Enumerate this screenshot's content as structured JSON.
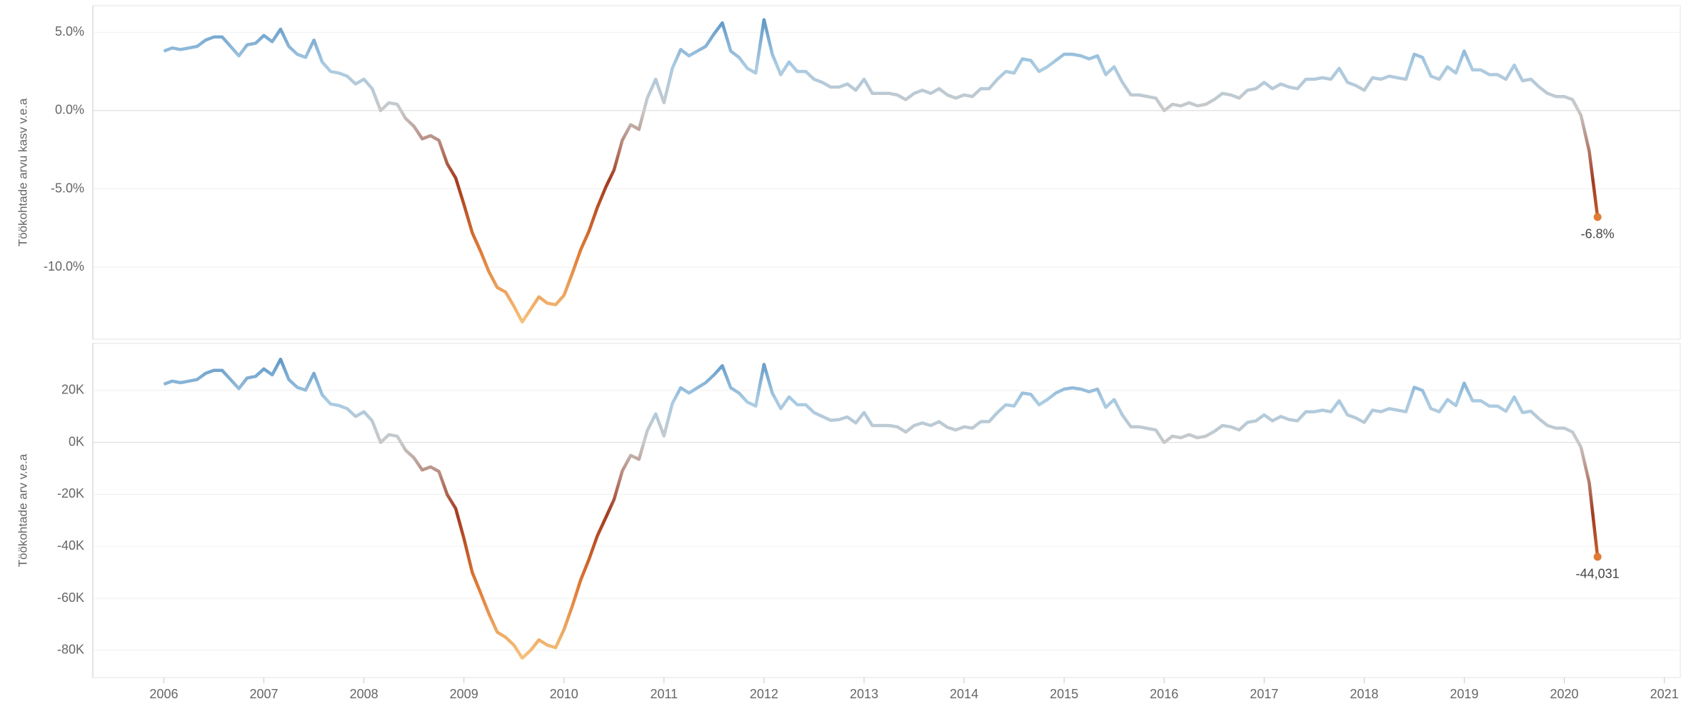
{
  "chart_data": [
    {
      "type": "line",
      "ylabel": "Töökohtade arvu kasv v.e.a",
      "x": [
        2006,
        2006.083,
        2006.167,
        2006.25,
        2006.333,
        2006.417,
        2006.5,
        2006.583,
        2006.667,
        2006.75,
        2006.833,
        2006.917,
        2007,
        2007.083,
        2007.167,
        2007.25,
        2007.333,
        2007.417,
        2007.5,
        2007.583,
        2007.667,
        2007.75,
        2007.833,
        2007.917,
        2008,
        2008.083,
        2008.167,
        2008.25,
        2008.333,
        2008.417,
        2008.5,
        2008.583,
        2008.667,
        2008.75,
        2008.833,
        2008.917,
        2009,
        2009.083,
        2009.167,
        2009.25,
        2009.333,
        2009.417,
        2009.5,
        2009.583,
        2009.667,
        2009.75,
        2009.833,
        2009.917,
        2010,
        2010.083,
        2010.167,
        2010.25,
        2010.333,
        2010.417,
        2010.5,
        2010.583,
        2010.667,
        2010.75,
        2010.833,
        2010.917,
        2011,
        2011.083,
        2011.167,
        2011.25,
        2011.333,
        2011.417,
        2011.5,
        2011.583,
        2011.667,
        2011.75,
        2011.833,
        2011.917,
        2012,
        2012.083,
        2012.167,
        2012.25,
        2012.333,
        2012.417,
        2012.5,
        2012.583,
        2012.667,
        2012.75,
        2012.833,
        2012.917,
        2013,
        2013.083,
        2013.167,
        2013.25,
        2013.333,
        2013.417,
        2013.5,
        2013.583,
        2013.667,
        2013.75,
        2013.833,
        2013.917,
        2014,
        2014.083,
        2014.167,
        2014.25,
        2014.333,
        2014.417,
        2014.5,
        2014.583,
        2014.667,
        2014.75,
        2014.833,
        2014.917,
        2015,
        2015.083,
        2015.167,
        2015.25,
        2015.333,
        2015.417,
        2015.5,
        2015.583,
        2015.667,
        2015.75,
        2015.833,
        2015.917,
        2016,
        2016.083,
        2016.167,
        2016.25,
        2016.333,
        2016.417,
        2016.5,
        2016.583,
        2016.667,
        2016.75,
        2016.833,
        2016.917,
        2017,
        2017.083,
        2017.167,
        2017.25,
        2017.333,
        2017.417,
        2017.5,
        2017.583,
        2017.667,
        2017.75,
        2017.833,
        2017.917,
        2018,
        2018.083,
        2018.167,
        2018.25,
        2018.333,
        2018.417,
        2018.5,
        2018.583,
        2018.667,
        2018.75,
        2018.833,
        2018.917,
        2019,
        2019.083,
        2019.167,
        2019.25,
        2019.333,
        2019.417,
        2019.5,
        2019.583,
        2019.667,
        2019.75,
        2019.833,
        2019.917,
        2020,
        2020.083,
        2020.167,
        2020.25,
        2020.333
      ],
      "values": [
        3.8,
        4.0,
        3.9,
        4.0,
        4.1,
        4.5,
        4.7,
        4.7,
        4.1,
        3.5,
        4.2,
        4.3,
        4.8,
        4.4,
        5.2,
        4.1,
        3.6,
        3.4,
        4.5,
        3.1,
        2.5,
        2.4,
        2.2,
        1.7,
        2.0,
        1.4,
        0.0,
        0.5,
        0.4,
        -0.5,
        -1.0,
        -1.8,
        -1.6,
        -1.9,
        -3.4,
        -4.3,
        -6.0,
        -7.8,
        -9.0,
        -10.3,
        -11.3,
        -11.6,
        -12.5,
        -13.5,
        -12.7,
        -11.9,
        -12.3,
        -12.4,
        -11.8,
        -10.4,
        -8.9,
        -7.7,
        -6.2,
        -4.9,
        -3.8,
        -1.9,
        -0.9,
        -1.2,
        0.8,
        2.0,
        0.5,
        2.7,
        3.9,
        3.5,
        3.8,
        4.1,
        4.9,
        5.6,
        3.8,
        3.4,
        2.7,
        2.4,
        5.8,
        3.6,
        2.3,
        3.1,
        2.5,
        2.5,
        2.0,
        1.8,
        1.5,
        1.5,
        1.7,
        1.3,
        2.0,
        1.1,
        1.1,
        1.1,
        1.0,
        0.7,
        1.1,
        1.3,
        1.1,
        1.4,
        1.0,
        0.8,
        1.0,
        0.9,
        1.4,
        1.4,
        2.0,
        2.5,
        2.4,
        3.3,
        3.2,
        2.5,
        2.8,
        3.2,
        3.6,
        3.6,
        3.5,
        3.3,
        3.5,
        2.3,
        2.8,
        1.8,
        1.0,
        1.0,
        0.9,
        0.8,
        0.0,
        0.4,
        0.3,
        0.5,
        0.3,
        0.4,
        0.7,
        1.1,
        1.0,
        0.8,
        1.3,
        1.4,
        1.8,
        1.4,
        1.7,
        1.5,
        1.4,
        2.0,
        2.0,
        2.1,
        2.0,
        2.7,
        1.8,
        1.6,
        1.3,
        2.1,
        2.0,
        2.2,
        2.1,
        2.0,
        3.6,
        3.4,
        2.2,
        2.0,
        2.8,
        2.4,
        3.8,
        2.6,
        2.6,
        2.3,
        2.3,
        2.0,
        2.9,
        1.9,
        2.0,
        1.5,
        1.1,
        0.9,
        0.9,
        0.7,
        -0.3,
        -2.6,
        -6.8
      ],
      "last_label": "-6.8%",
      "xlim": [
        2005.29,
        2021.16
      ],
      "ylim": [
        -14.6,
        6.7
      ],
      "yticks": [
        {
          "value": 5,
          "label": "5.0%"
        },
        {
          "value": 0,
          "label": "0.0%"
        },
        {
          "value": -5,
          "label": "-5.0%"
        },
        {
          "value": -10,
          "label": "-10.0%"
        }
      ],
      "grid": true,
      "colors": {
        "negative": [
          "#a23b1f",
          "#e07b35",
          "#f5c27e"
        ],
        "zero": "#c9c9c9",
        "positive": [
          "#a9cbe3",
          "#5f97c6"
        ]
      }
    },
    {
      "type": "line",
      "ylabel": "Töökohtade arv v.e.a",
      "x": [
        2006,
        2006.083,
        2006.167,
        2006.25,
        2006.333,
        2006.417,
        2006.5,
        2006.583,
        2006.667,
        2006.75,
        2006.833,
        2006.917,
        2007,
        2007.083,
        2007.167,
        2007.25,
        2007.333,
        2007.417,
        2007.5,
        2007.583,
        2007.667,
        2007.75,
        2007.833,
        2007.917,
        2008,
        2008.083,
        2008.167,
        2008.25,
        2008.333,
        2008.417,
        2008.5,
        2008.583,
        2008.667,
        2008.75,
        2008.833,
        2008.917,
        2009,
        2009.083,
        2009.167,
        2009.25,
        2009.333,
        2009.417,
        2009.5,
        2009.583,
        2009.667,
        2009.75,
        2009.833,
        2009.917,
        2010,
        2010.083,
        2010.167,
        2010.25,
        2010.333,
        2010.417,
        2010.5,
        2010.583,
        2010.667,
        2010.75,
        2010.833,
        2010.917,
        2011,
        2011.083,
        2011.167,
        2011.25,
        2011.333,
        2011.417,
        2011.5,
        2011.583,
        2011.667,
        2011.75,
        2011.833,
        2011.917,
        2012,
        2012.083,
        2012.167,
        2012.25,
        2012.333,
        2012.417,
        2012.5,
        2012.583,
        2012.667,
        2012.75,
        2012.833,
        2012.917,
        2013,
        2013.083,
        2013.167,
        2013.25,
        2013.333,
        2013.417,
        2013.5,
        2013.583,
        2013.667,
        2013.75,
        2013.833,
        2013.917,
        2014,
        2014.083,
        2014.167,
        2014.25,
        2014.333,
        2014.417,
        2014.5,
        2014.583,
        2014.667,
        2014.75,
        2014.833,
        2014.917,
        2015,
        2015.083,
        2015.167,
        2015.25,
        2015.333,
        2015.417,
        2015.5,
        2015.583,
        2015.667,
        2015.75,
        2015.833,
        2015.917,
        2016,
        2016.083,
        2016.167,
        2016.25,
        2016.333,
        2016.417,
        2016.5,
        2016.583,
        2016.667,
        2016.75,
        2016.833,
        2016.917,
        2017,
        2017.083,
        2017.167,
        2017.25,
        2017.333,
        2017.417,
        2017.5,
        2017.583,
        2017.667,
        2017.75,
        2017.833,
        2017.917,
        2018,
        2018.083,
        2018.167,
        2018.25,
        2018.333,
        2018.417,
        2018.5,
        2018.583,
        2018.667,
        2018.75,
        2018.833,
        2018.917,
        2019,
        2019.083,
        2019.167,
        2019.25,
        2019.333,
        2019.417,
        2019.5,
        2019.583,
        2019.667,
        2019.75,
        2019.833,
        2019.917,
        2020,
        2020.083,
        2020.167,
        2020.25,
        2020.333
      ],
      "values": [
        22400,
        23600,
        23000,
        23600,
        24200,
        26600,
        27700,
        27700,
        24200,
        20700,
        24800,
        25400,
        28300,
        26000,
        32000,
        24200,
        21200,
        20100,
        26600,
        18300,
        14800,
        14200,
        13000,
        10000,
        11800,
        8300,
        0,
        3000,
        2400,
        -3000,
        -5900,
        -10600,
        -9400,
        -11200,
        -20100,
        -25400,
        -37000,
        -50000,
        -58000,
        -66000,
        -73000,
        -75000,
        -78000,
        -83000,
        -80000,
        -76000,
        -78000,
        -79000,
        -72000,
        -63000,
        -53000,
        -45000,
        -36000,
        -29000,
        -22000,
        -11000,
        -5000,
        -6500,
        4500,
        11000,
        2500,
        15000,
        21000,
        19000,
        21000,
        23000,
        26000,
        29500,
        21000,
        19000,
        15500,
        14000,
        30000,
        19000,
        13000,
        17500,
        14500,
        14500,
        11500,
        10000,
        8500,
        8800,
        9800,
        7500,
        11500,
        6500,
        6500,
        6500,
        6000,
        4000,
        6500,
        7500,
        6500,
        8000,
        5800,
        4800,
        6000,
        5500,
        8000,
        8000,
        11500,
        14500,
        14000,
        19000,
        18500,
        14500,
        16500,
        19000,
        20500,
        21000,
        20500,
        19500,
        20500,
        13500,
        16500,
        10500,
        6000,
        6000,
        5400,
        4800,
        0,
        2400,
        1800,
        3000,
        1800,
        2400,
        4200,
        6500,
        6000,
        4800,
        7700,
        8300,
        10600,
        8300,
        10000,
        8800,
        8300,
        11800,
        11800,
        12400,
        11800,
        16000,
        10600,
        9400,
        7700,
        12400,
        11800,
        13000,
        12400,
        11800,
        21200,
        20000,
        13000,
        11800,
        16500,
        14200,
        22800,
        16000,
        16000,
        14000,
        14000,
        12000,
        17500,
        11500,
        12000,
        9000,
        6500,
        5500,
        5500,
        4000,
        -1800,
        -15500,
        -44031
      ],
      "last_label": "-44,031",
      "xlim": [
        2005.29,
        2021.16
      ],
      "ylim": [
        -90500,
        38100
      ],
      "xticks": [
        2006,
        2007,
        2008,
        2009,
        2010,
        2011,
        2012,
        2013,
        2014,
        2015,
        2016,
        2017,
        2018,
        2019,
        2020,
        2021
      ],
      "yticks": [
        {
          "value": 20000,
          "label": "20K"
        },
        {
          "value": 0,
          "label": "0K"
        },
        {
          "value": -20000,
          "label": "-20K"
        },
        {
          "value": -40000,
          "label": "-40K"
        },
        {
          "value": -60000,
          "label": "-60K"
        },
        {
          "value": -80000,
          "label": "-80K"
        }
      ],
      "grid": true,
      "colors": {
        "negative": [
          "#a23b1f",
          "#e07b35",
          "#f5c27e"
        ],
        "zero": "#c9c9c9",
        "positive": [
          "#a9cbe3",
          "#5f97c6"
        ]
      }
    }
  ]
}
